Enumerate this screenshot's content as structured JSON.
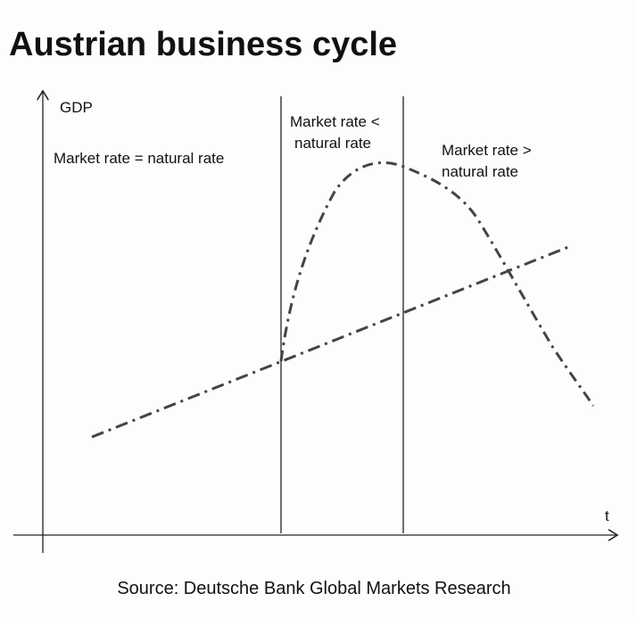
{
  "title": "Austrian business cycle",
  "axes": {
    "y_label": "GDP",
    "x_label": "t"
  },
  "regions": [
    {
      "lines": [
        "Market rate = natural rate"
      ]
    },
    {
      "lines": [
        "Market rate <",
        "natural rate"
      ]
    },
    {
      "lines": [
        "Market rate >",
        "natural rate"
      ]
    }
  ],
  "source": "Source: Deutsche Bank Global Markets Research"
}
